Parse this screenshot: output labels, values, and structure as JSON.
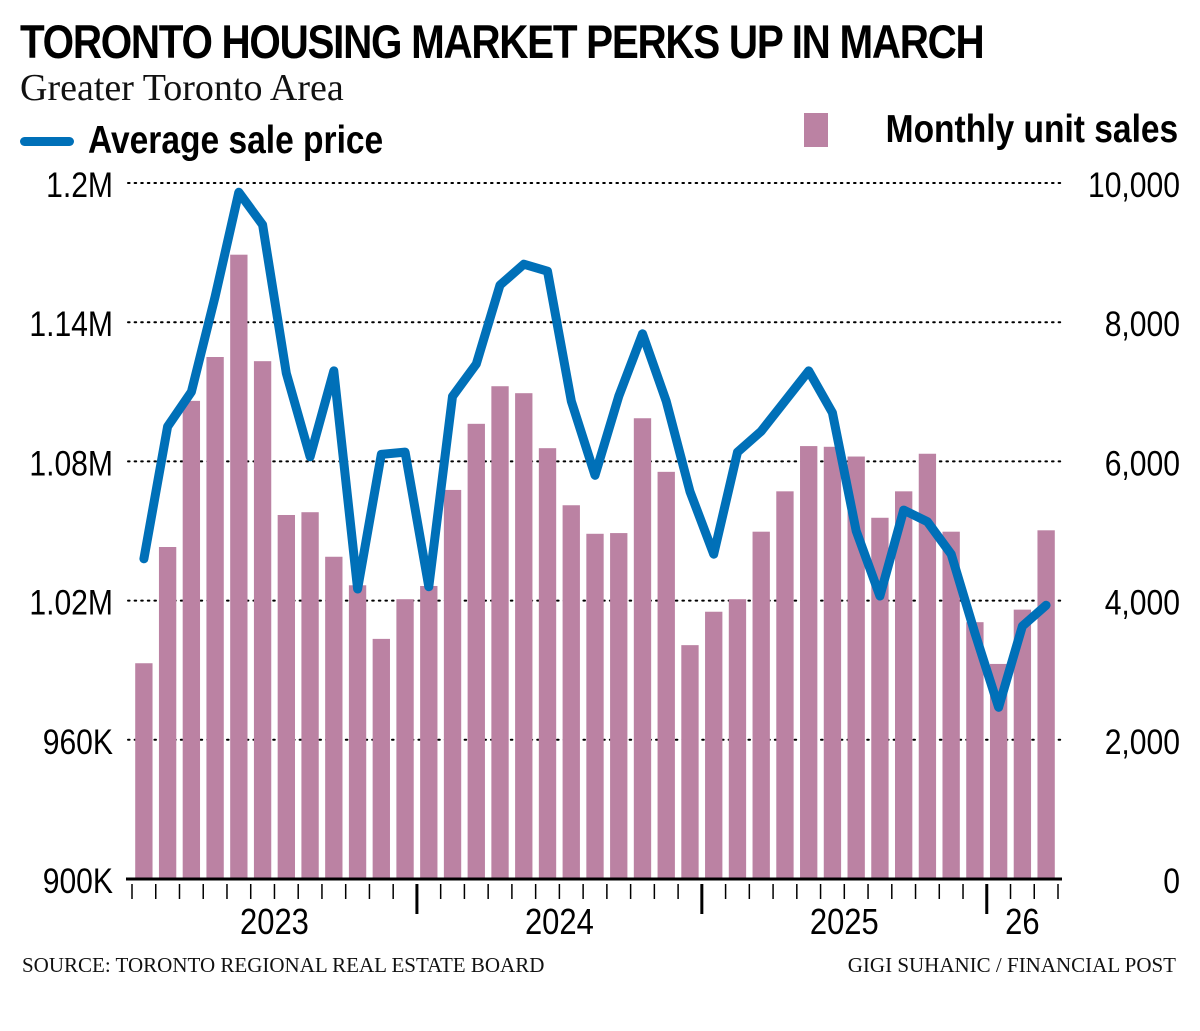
{
  "header": {
    "title": "TORONTO HOUSING MARKET PERKS UP IN MARCH",
    "subtitle": "Greater Toronto Area"
  },
  "legend": {
    "line_label": "Average sale price",
    "bar_label": "Monthly unit sales"
  },
  "footer": {
    "source": "SOURCE: TORONTO REGIONAL REAL ESTATE BOARD",
    "credit": "GIGI SUHANIC / FINANCIAL POST"
  },
  "colors": {
    "bars": "#bb82a3",
    "line": "#0070b8",
    "axis": "#000000",
    "grid": "#000000"
  },
  "chart_data": {
    "type": "bar+line",
    "title": "TORONTO HOUSING MARKET PERKS UP IN MARCH",
    "subtitle": "Greater Toronto Area",
    "xlabel": "",
    "grid": true,
    "grid_style": "dotted",
    "legend": [
      "Average sale price",
      "Monthly unit sales"
    ],
    "legend_position": "top",
    "months": [
      "2023-01",
      "2023-02",
      "2023-03",
      "2023-04",
      "2023-05",
      "2023-06",
      "2023-07",
      "2023-08",
      "2023-09",
      "2023-10",
      "2023-11",
      "2023-12",
      "2024-01",
      "2024-02",
      "2024-03",
      "2024-04",
      "2024-05",
      "2024-06",
      "2024-07",
      "2024-08",
      "2024-09",
      "2024-10",
      "2024-11",
      "2024-12",
      "2025-01",
      "2025-02",
      "2025-03",
      "2025-04",
      "2025-05",
      "2025-06",
      "2025-07",
      "2025-08",
      "2025-09",
      "2025-10",
      "2025-11",
      "2025-12",
      "2026-01",
      "2026-02",
      "2026-03"
    ],
    "year_labels": [
      {
        "label": "2023",
        "start_index": 0,
        "span": 12
      },
      {
        "label": "2024",
        "start_index": 12,
        "span": 12
      },
      {
        "label": "2025",
        "start_index": 24,
        "span": 12
      },
      {
        "label": "26",
        "start_index": 36,
        "span": 3
      }
    ],
    "series": [
      {
        "name": "Average sale price",
        "type": "line",
        "axis": "left",
        "values": [
          1038000,
          1095000,
          1110000,
          1151000,
          1196000,
          1182000,
          1118000,
          1082000,
          1119000,
          1025000,
          1083000,
          1084000,
          1026000,
          1108000,
          1122000,
          1156000,
          1165000,
          1162000,
          1106000,
          1074000,
          1108000,
          1135000,
          1106000,
          1067000,
          1040000,
          1084000,
          1093000,
          1106000,
          1119000,
          1101000,
          1050000,
          1022000,
          1059000,
          1054000,
          1040000,
          1006000,
          974000,
          1009000,
          1018000
        ]
      },
      {
        "name": "Monthly unit sales",
        "type": "bar",
        "axis": "right",
        "values": [
          3100,
          4770,
          6870,
          7500,
          8970,
          7440,
          5230,
          5270,
          4630,
          4220,
          3450,
          4020,
          4210,
          5590,
          6540,
          7080,
          6980,
          6190,
          5370,
          4960,
          4970,
          6620,
          5850,
          3360,
          3840,
          4020,
          4990,
          5570,
          6220,
          6210,
          6070,
          5190,
          5570,
          6110,
          4990,
          3690,
          3090,
          3870,
          5010
        ]
      }
    ],
    "y_left": {
      "label": "Average sale price",
      "ylim": [
        900000,
        1200000
      ],
      "ticks": [
        900000,
        960000,
        1020000,
        1080000,
        1140000,
        1200000
      ],
      "tick_labels": [
        "900K",
        "960K",
        "1.02M",
        "1.08M",
        "1.14M",
        "1.2M"
      ]
    },
    "y_right": {
      "label": "Monthly unit sales",
      "ylim": [
        0,
        10000
      ],
      "ticks": [
        0,
        2000,
        4000,
        6000,
        8000,
        10000
      ],
      "tick_labels": [
        "0",
        "2,000",
        "4,000",
        "6,000",
        "8,000",
        "10,000"
      ]
    }
  }
}
